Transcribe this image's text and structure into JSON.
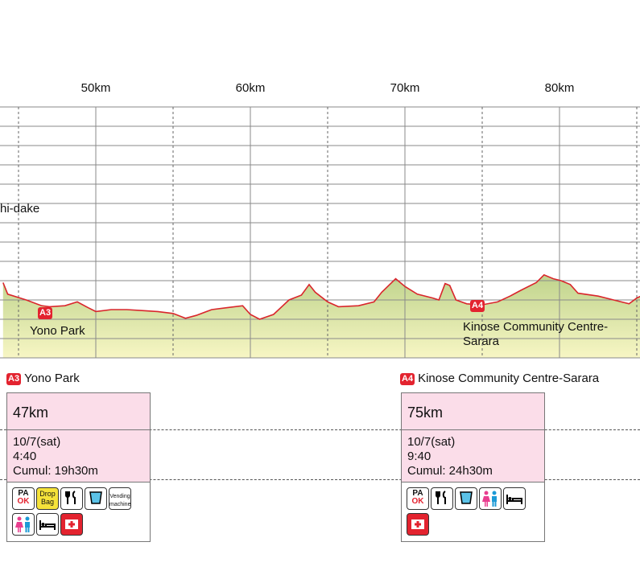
{
  "chart_data": {
    "type": "area",
    "x_unit": "km",
    "xlim": [
      44,
      85.4
    ],
    "ylim": [
      0,
      13
    ],
    "major_ticks": [
      50,
      60,
      70,
      80
    ],
    "minor_ticks": [
      45,
      55,
      65,
      75,
      85
    ],
    "tick_labels": [
      "50km",
      "60km",
      "70km",
      "80km"
    ],
    "colors": {
      "line": "#d9262c",
      "fill_top": "#bfd38c",
      "fill_bottom": "#f7f6c4",
      "grid": "#8a8a8a"
    },
    "profile": [
      [
        44.0,
        3.9
      ],
      [
        44.3,
        3.3
      ],
      [
        45.5,
        3.0
      ],
      [
        46.5,
        2.7
      ],
      [
        47.0,
        2.65
      ],
      [
        48.0,
        2.7
      ],
      [
        48.8,
        2.9
      ],
      [
        49.5,
        2.6
      ],
      [
        50.0,
        2.4
      ],
      [
        51.0,
        2.5
      ],
      [
        52.0,
        2.5
      ],
      [
        53.0,
        2.45
      ],
      [
        54.0,
        2.4
      ],
      [
        55.0,
        2.3
      ],
      [
        55.8,
        2.05
      ],
      [
        56.5,
        2.2
      ],
      [
        57.5,
        2.5
      ],
      [
        58.5,
        2.6
      ],
      [
        59.5,
        2.7
      ],
      [
        60.0,
        2.25
      ],
      [
        60.6,
        2.0
      ],
      [
        61.5,
        2.25
      ],
      [
        62.5,
        3.0
      ],
      [
        63.3,
        3.25
      ],
      [
        63.8,
        3.8
      ],
      [
        64.2,
        3.4
      ],
      [
        65.0,
        2.9
      ],
      [
        65.7,
        2.65
      ],
      [
        67.0,
        2.7
      ],
      [
        68.0,
        2.9
      ],
      [
        68.5,
        3.4
      ],
      [
        69.4,
        4.1
      ],
      [
        70.0,
        3.7
      ],
      [
        70.8,
        3.3
      ],
      [
        71.8,
        3.1
      ],
      [
        72.2,
        3.0
      ],
      [
        72.6,
        3.85
      ],
      [
        72.9,
        3.75
      ],
      [
        73.3,
        3.0
      ],
      [
        74.0,
        2.8
      ],
      [
        75.0,
        2.75
      ],
      [
        76.0,
        2.9
      ],
      [
        76.8,
        3.2
      ],
      [
        77.5,
        3.5
      ],
      [
        78.5,
        3.9
      ],
      [
        79.0,
        4.3
      ],
      [
        79.6,
        4.1
      ],
      [
        80.1,
        4.0
      ],
      [
        80.7,
        3.8
      ],
      [
        81.2,
        3.35
      ],
      [
        82.5,
        3.2
      ],
      [
        83.5,
        3.0
      ],
      [
        84.5,
        2.8
      ],
      [
        85.0,
        3.1
      ],
      [
        85.4,
        3.25
      ]
    ],
    "aid_stations": [
      {
        "code": "A3",
        "km": 47.0,
        "name": "Yono Park"
      },
      {
        "code": "A4",
        "km": 75.0,
        "name": "Kinose Community Centre-Sarara"
      }
    ]
  },
  "labels": {
    "peak": "hi-dake",
    "a3_name": "Yono Park",
    "a4_name_line1": "Kinose Community Centre-",
    "a4_name_line2": "Sarara"
  },
  "aid_stations": [
    {
      "code": "A3",
      "name": "Yono Park",
      "distance": "47km",
      "date": "10/7(sat)",
      "time": "4:40",
      "cumulative": "Cumul: 19h30m",
      "services": [
        "PA OK",
        "Drop Bag",
        "food-icon",
        "water-icon",
        "Vending machine",
        "toilet-icon",
        "bed-icon",
        "first-aid-icon"
      ]
    },
    {
      "code": "A4",
      "name": "Kinose Community Centre-Sarara",
      "distance": "75km",
      "date": "10/7(sat)",
      "time": "9:40",
      "cumulative": "Cumul: 24h30m",
      "services": [
        "PA OK",
        "food-icon",
        "water-icon",
        "toilet-icon",
        "bed-icon",
        "first-aid-icon"
      ]
    }
  ],
  "service_text": {
    "pa": "PA",
    "ok": "OK",
    "drop": "Drop",
    "bag": "Bag",
    "vending": "Vending",
    "machine": "machine"
  }
}
